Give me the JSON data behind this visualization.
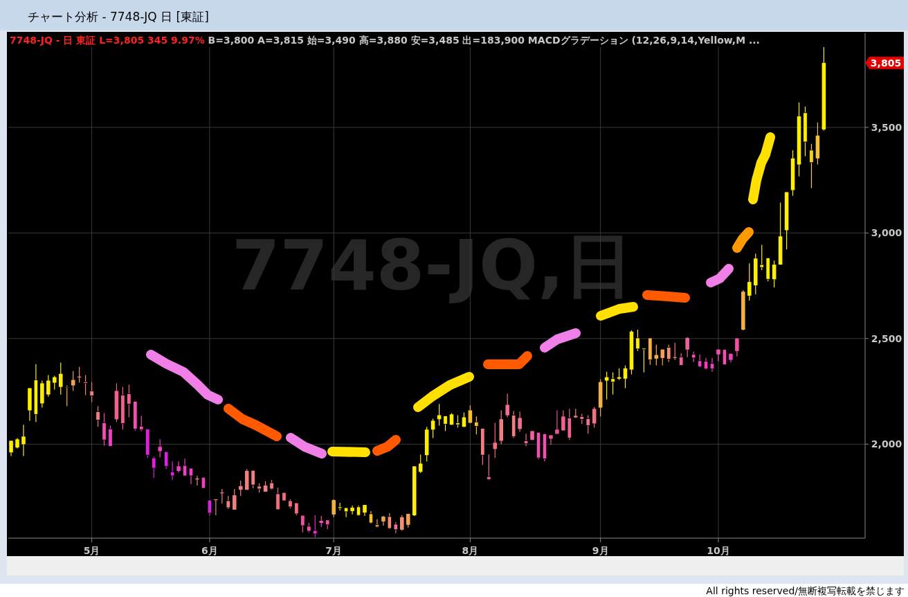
{
  "chart_data": {
    "type": "candlestick",
    "title": "チャート分析 - 7748-JQ 日 [東証]",
    "subtitle": "7748-JQ - 日  東証  L=3,805  345  9.97%",
    "annotations": [
      "B=3,800  A=3,815  始=3,490  高=3,880  安=3,485  出=183,900  MACDグラデーション (12,26,9,14,Yellow,M ...",
      "7748-JQ,日",
      "All rights reserved/無断複写転載を禁じます",
      "3,805"
    ],
    "categories": [
      null,
      null,
      null,
      null,
      null,
      null,
      null,
      null,
      null,
      null,
      null,
      null,
      null,
      "5月",
      null,
      null,
      null,
      null,
      null,
      null,
      null,
      null,
      null,
      null,
      null,
      null,
      null,
      null,
      null,
      null,
      null,
      null,
      "6月",
      null,
      null,
      null,
      null,
      null,
      null,
      null,
      null,
      null,
      null,
      null,
      null,
      null,
      null,
      null,
      null,
      null,
      null,
      null,
      "7月",
      null,
      null,
      null,
      null,
      null,
      null,
      null,
      null,
      null,
      null,
      null,
      null,
      null,
      null,
      null,
      null,
      null,
      null,
      null,
      null,
      null,
      "8月",
      null,
      null,
      null,
      null,
      null,
      null,
      null,
      null,
      null,
      null,
      null,
      null,
      null,
      null,
      null,
      null,
      null,
      null,
      null,
      null,
      "9月",
      null,
      null,
      null,
      null,
      null,
      null,
      null,
      null,
      null,
      null,
      null,
      null,
      null,
      null,
      null,
      null,
      null,
      null,
      "10月",
      null,
      null,
      null,
      null,
      null,
      null,
      null,
      null,
      null,
      null,
      null,
      null,
      null,
      null,
      null,
      null,
      null
    ],
    "ohlc": [
      [
        1961,
        2016,
        1944,
        2016
      ],
      [
        1984,
        2029,
        1980,
        2023
      ],
      [
        2000,
        2092,
        1944,
        2036
      ],
      [
        2160,
        2265,
        2111,
        2265
      ],
      [
        2304,
        2379,
        2105,
        2141
      ],
      [
        2193,
        2301,
        2173,
        2288
      ],
      [
        2235,
        2327,
        2225,
        2301
      ],
      [
        2291,
        2324,
        2258,
        2317
      ],
      [
        2271,
        2386,
        2235,
        2333
      ],
      [
        2271,
        2278,
        2180,
        2268
      ],
      [
        2278,
        2346,
        2252,
        2304
      ],
      [
        2320,
        2366,
        2291,
        2320
      ],
      [
        2294,
        2327,
        2232,
        2288
      ],
      [
        2252,
        2294,
        2199,
        2229
      ],
      [
        2154,
        2180,
        2082,
        2114
      ],
      [
        2101,
        2147,
        1993,
        2020
      ],
      [
        2072,
        2088,
        1990,
        1990
      ],
      [
        2118,
        2288,
        2105,
        2252
      ],
      [
        2232,
        2271,
        2069,
        2098
      ],
      [
        2239,
        2281,
        2127,
        2190
      ],
      [
        2203,
        2203,
        2065,
        2072
      ],
      [
        2085,
        2134,
        2062,
        2069
      ],
      [
        2072,
        2072,
        1935,
        1948
      ],
      [
        1935,
        1941,
        1840,
        1886
      ],
      [
        1967,
        2023,
        1938,
        1987
      ],
      [
        1964,
        1964,
        1882,
        1895
      ],
      [
        1869,
        1918,
        1830,
        1850
      ],
      [
        1873,
        1918,
        1866,
        1895
      ],
      [
        1899,
        1931,
        1850,
        1850
      ],
      [
        1886,
        1886,
        1810,
        1850
      ],
      [
        1837,
        1850,
        1804,
        1837
      ],
      [
        1843,
        1843,
        1791,
        1791
      ],
      [
        1735,
        1735,
        1663,
        1673
      ],
      [
        1735,
        1739,
        1663,
        1739
      ],
      [
        1771,
        1788,
        1719,
        1771
      ],
      [
        1732,
        1755,
        1693,
        1699
      ],
      [
        1690,
        1788,
        1690,
        1758
      ],
      [
        1784,
        1827,
        1755,
        1801
      ],
      [
        1784,
        1882,
        1784,
        1873
      ],
      [
        1876,
        1876,
        1791,
        1807
      ],
      [
        1801,
        1814,
        1771,
        1788
      ],
      [
        1775,
        1824,
        1775,
        1804
      ],
      [
        1817,
        1830,
        1784,
        1788
      ],
      [
        1765,
        1794,
        1690,
        1690
      ],
      [
        1771,
        1771,
        1732,
        1732
      ],
      [
        1732,
        1739,
        1696,
        1703
      ],
      [
        1722,
        1722,
        1663,
        1670
      ],
      [
        1663,
        1663,
        1582,
        1614
      ],
      [
        1611,
        1627,
        1582,
        1588
      ],
      [
        1591,
        1663,
        1560,
        1575
      ],
      [
        1627,
        1660,
        1608,
        1637
      ],
      [
        1641,
        1641,
        1598,
        1618
      ],
      [
        1667,
        1739,
        1654,
        1735
      ],
      [
        1703,
        1722,
        1686,
        1696
      ],
      [
        1699,
        1699,
        1654,
        1680
      ],
      [
        1683,
        1709,
        1667,
        1699
      ],
      [
        1703,
        1709,
        1660,
        1663
      ],
      [
        1676,
        1712,
        1660,
        1712
      ],
      [
        1670,
        1683,
        1624,
        1627
      ],
      [
        1618,
        1644,
        1605,
        1608
      ],
      [
        1634,
        1660,
        1614,
        1657
      ],
      [
        1657,
        1673,
        1598,
        1601
      ],
      [
        1621,
        1631,
        1578,
        1595
      ],
      [
        1595,
        1663,
        1591,
        1654
      ],
      [
        1618,
        1670,
        1605,
        1670
      ],
      [
        1663,
        1895,
        1660,
        1895
      ],
      [
        1869,
        1951,
        1863,
        1908
      ],
      [
        1948,
        2082,
        1918,
        2069
      ],
      [
        2069,
        2121,
        2029,
        2111
      ],
      [
        2118,
        2190,
        2088,
        2137
      ],
      [
        2134,
        2134,
        2062,
        2095
      ],
      [
        2092,
        2147,
        2092,
        2141
      ],
      [
        2101,
        2137,
        2078,
        2092
      ],
      [
        2082,
        2150,
        2082,
        2127
      ],
      [
        2101,
        2183,
        2101,
        2160
      ],
      [
        2105,
        2131,
        2046,
        2085
      ],
      [
        2075,
        2075,
        1902,
        1948
      ],
      [
        1846,
        1951,
        1830,
        1833
      ],
      [
        1977,
        2101,
        1935,
        2007
      ],
      [
        2016,
        2160,
        2000,
        2118
      ],
      [
        2137,
        2239,
        2127,
        2186
      ],
      [
        2137,
        2157,
        2029,
        2036
      ],
      [
        2072,
        2154,
        2059,
        2124
      ],
      [
        2016,
        2049,
        1990,
        2003
      ],
      [
        2020,
        2062,
        2020,
        2062
      ],
      [
        2056,
        2056,
        1928,
        1935
      ],
      [
        2049,
        2052,
        1918,
        1931
      ],
      [
        2026,
        2042,
        1997,
        2042
      ],
      [
        2049,
        2160,
        2049,
        2069
      ],
      [
        2065,
        2160,
        2065,
        2131
      ],
      [
        2124,
        2167,
        2020,
        2029
      ],
      [
        2127,
        2167,
        2124,
        2134
      ],
      [
        2131,
        2144,
        2095,
        2118
      ],
      [
        2121,
        2137,
        2049,
        2088
      ],
      [
        2098,
        2176,
        2078,
        2167
      ],
      [
        2173,
        2307,
        2131,
        2294
      ],
      [
        2301,
        2343,
        2212,
        2317
      ],
      [
        2310,
        2340,
        2235,
        2294
      ],
      [
        2310,
        2359,
        2304,
        2317
      ],
      [
        2310,
        2373,
        2265,
        2359
      ],
      [
        2353,
        2539,
        2330,
        2533
      ],
      [
        2503,
        2542,
        2441,
        2451
      ],
      [
        2454,
        2454,
        2340,
        2448
      ],
      [
        2503,
        2503,
        2376,
        2399
      ],
      [
        2405,
        2471,
        2373,
        2422
      ],
      [
        2408,
        2448,
        2373,
        2448
      ],
      [
        2458,
        2471,
        2389,
        2402
      ],
      [
        2412,
        2480,
        2399,
        2412
      ],
      [
        2412,
        2431,
        2373,
        2373
      ],
      [
        2448,
        2507,
        2412,
        2503
      ],
      [
        2425,
        2438,
        2389,
        2408
      ],
      [
        2395,
        2425,
        2366,
        2366
      ],
      [
        2392,
        2408,
        2353,
        2356
      ],
      [
        2382,
        2408,
        2343,
        2356
      ],
      [
        2425,
        2448,
        2392,
        2448
      ],
      [
        2448,
        2448,
        2376,
        2376
      ],
      [
        2399,
        2428,
        2386,
        2428
      ],
      [
        2441,
        2503,
        2415,
        2500
      ],
      [
        2542,
        2729,
        2539,
        2722
      ],
      [
        2703,
        2856,
        2680,
        2768
      ],
      [
        2752,
        2902,
        2709,
        2879
      ],
      [
        2850,
        2944,
        2824,
        2837
      ],
      [
        2882,
        2882,
        2771,
        2781
      ],
      [
        2781,
        2869,
        2742,
        2850
      ],
      [
        2850,
        3144,
        2850,
        2984
      ],
      [
        3013,
        3193,
        2922,
        3193
      ],
      [
        3203,
        3392,
        3176,
        3353
      ],
      [
        3324,
        3618,
        3268,
        3552
      ],
      [
        3569,
        3598,
        3363,
        3431
      ],
      [
        3392,
        3422,
        3212,
        3333
      ],
      [
        3353,
        3523,
        3324,
        3461
      ],
      [
        3490,
        3880,
        3485,
        3805
      ]
    ],
    "colors": [
      "#ffee00",
      "#ffee00",
      "#ffee00",
      "#ffee00",
      "#ffee00",
      "#ffee00",
      "#ffee00",
      "#ffee00",
      "#ffee00",
      "#f4b040",
      "#f5a050",
      "#f59070",
      "#f58080",
      "#f08080",
      "#f08080",
      "#f050b0",
      "#f040c8",
      "#f06090",
      "#f06090",
      "#f06090",
      "#f050b0",
      "#f050b0",
      "#e020e0",
      "#e020e0",
      "#f040c0",
      "#e020e0",
      "#e020e0",
      "#f040c8",
      "#f040c8",
      "#f040c8",
      "#f08090",
      "#f040c0",
      "#e020e0",
      "#f08080",
      "#f08080",
      "#f08080",
      "#f08080",
      "#f08080",
      "#f08080",
      "#f08080",
      "#f08080",
      "#f08080",
      "#f08080",
      "#f07080",
      "#f07080",
      "#f07080",
      "#f07080",
      "#f050a0",
      "#f050b0",
      "#e030d0",
      "#f050b0",
      "#f050a0",
      "#f4b040",
      "#ffee00",
      "#ffee00",
      "#ffee00",
      "#ffee00",
      "#ffee00",
      "#f8c030",
      "#f4a050",
      "#f4a050",
      "#f09070",
      "#f07090",
      "#f09070",
      "#f4a050",
      "#ffee00",
      "#ffee00",
      "#ffee00",
      "#ffee00",
      "#ffee00",
      "#ffee00",
      "#ffee00",
      "#ffee00",
      "#ffee00",
      "#f8c030",
      "#f8c030",
      "#f08080",
      "#f07090",
      "#f07080",
      "#f08080",
      "#f07090",
      "#f08080",
      "#f07090",
      "#f07090",
      "#f060a0",
      "#f050b0",
      "#f050b0",
      "#f050a0",
      "#f050a0",
      "#f06090",
      "#f06090",
      "#f08080",
      "#f07090",
      "#f07090",
      "#f07080",
      "#f4b040",
      "#ffee00",
      "#ffee00",
      "#ffee00",
      "#ffee00",
      "#ffee00",
      "#ffee00",
      "#ffee00",
      "#f4b040",
      "#f4b040",
      "#f4a050",
      "#f09070",
      "#f08080",
      "#f060a0",
      "#f060a0",
      "#f050b0",
      "#f040c0",
      "#f040c0",
      "#f040c0",
      "#f050b0",
      "#f050b0",
      "#f040c0",
      "#f050a0",
      "#f4b040",
      "#ffee00",
      "#ffee00",
      "#ffee00",
      "#ffee00",
      "#ffee00",
      "#ffee00",
      "#ffee00",
      "#ffee00",
      "#ffee00",
      "#ffee00",
      "#f8d020",
      "#f4c040",
      "#ffee00"
    ],
    "ylim": [
      1555,
      3880
    ],
    "yticks": [
      {
        "value": 2000,
        "label": "2,000"
      },
      {
        "value": 2500,
        "label": "2,500"
      },
      {
        "value": 3000,
        "label": "3,000"
      },
      {
        "value": 3500,
        "label": "3,500"
      }
    ],
    "grid": true
  }
}
